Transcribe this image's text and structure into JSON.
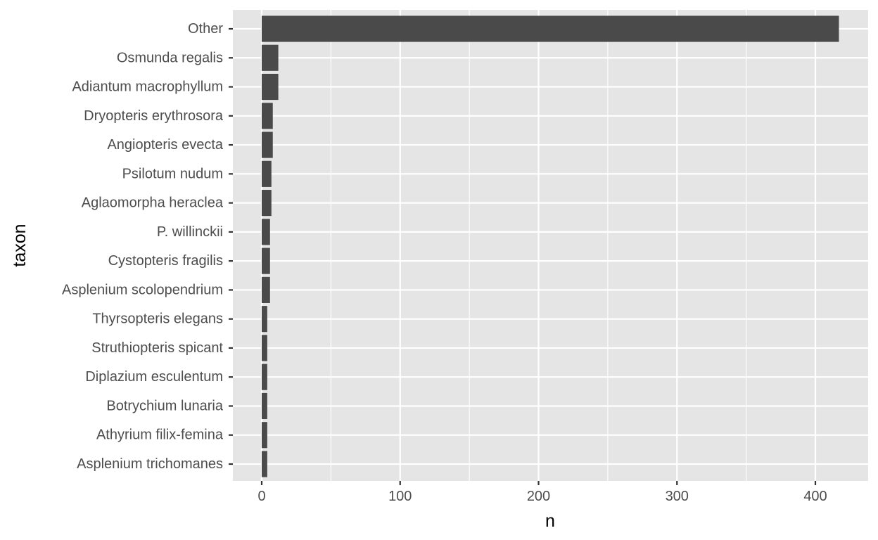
{
  "chart_data": {
    "type": "bar",
    "orientation": "horizontal",
    "xlabel": "n",
    "ylabel": "taxon",
    "xlim": [
      -20,
      438
    ],
    "x_ticks": [
      0,
      100,
      200,
      300,
      400
    ],
    "grid": true,
    "categories": [
      "Other",
      "Osmunda regalis",
      "Adiantum macrophyllum",
      "Dryopteris erythrosora",
      "Angiopteris evecta",
      "Psilotum nudum",
      "Aglaomorpha heraclea",
      "P. willinckii",
      "Cystopteris fragilis",
      "Asplenium scolopendrium",
      "Thyrsopteris elegans",
      "Struthiopteris spicant",
      "Diplazium esculentum",
      "Botrychium lunaria",
      "Athyrium filix-femina",
      "Asplenium trichomanes"
    ],
    "values": [
      417,
      12,
      12,
      8,
      8,
      7,
      7,
      6,
      6,
      6,
      4,
      4,
      4,
      4,
      4,
      4
    ],
    "colors": {
      "panel_background": "#e5e5e5",
      "grid_major": "#ffffff",
      "bar_fill": "#4a4a4a",
      "tick_color": "#333333",
      "tick_label_color": "#4d4d4d"
    }
  }
}
